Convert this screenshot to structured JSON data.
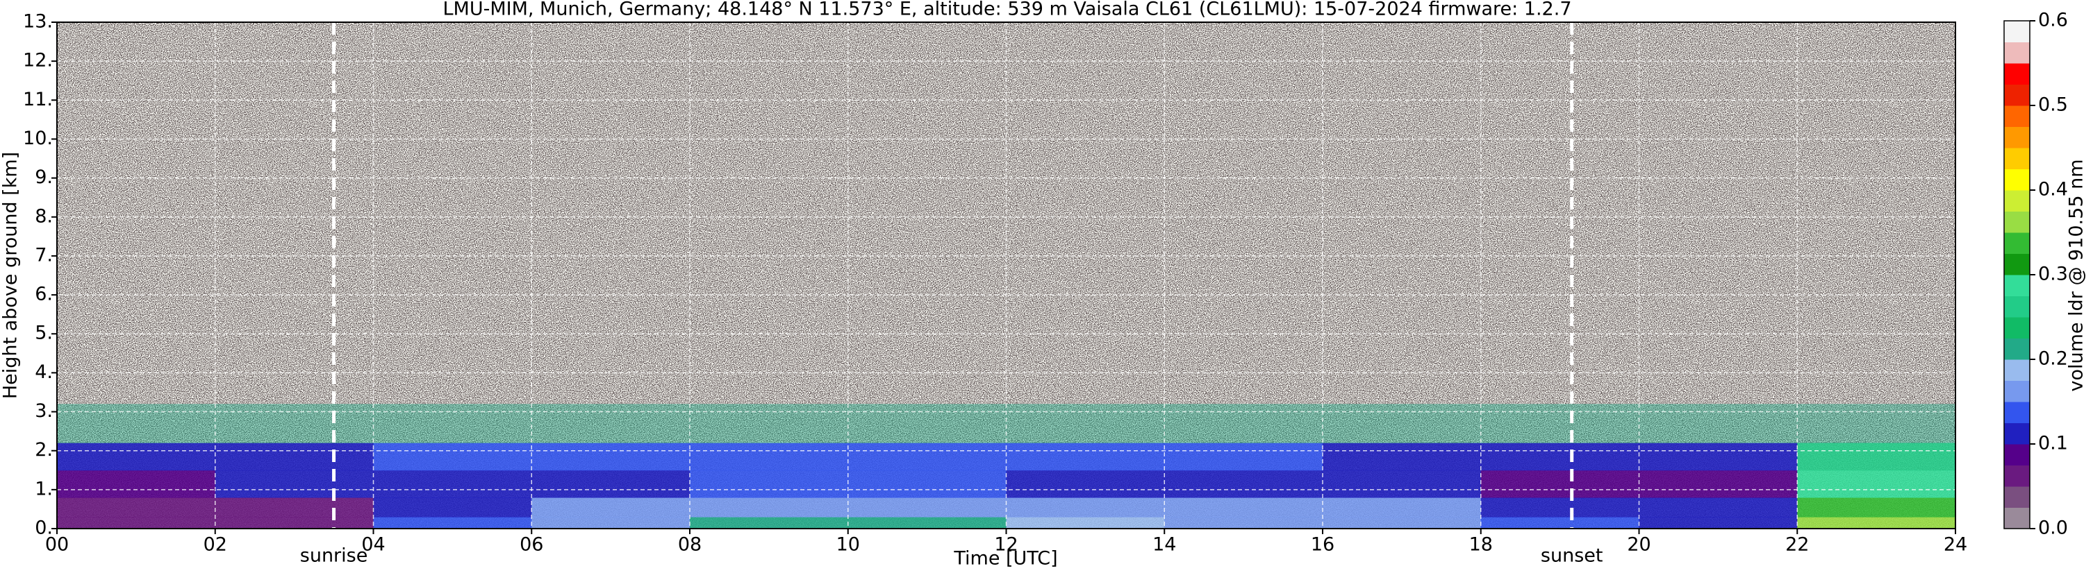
{
  "chart_data": {
    "type": "heatmap",
    "title": "LMU-MIM, Munich, Germany; 48.148° N 11.573° E, altitude: 539 m    Vaisala CL61 (CL61LMU): 15-07-2024    firmware: 1.2.7",
    "xlabel": "Time [UTC]",
    "ylabel": "Height above ground [km]",
    "colorbar_label": "volume ldr @ 910.55 nm",
    "xlim": [
      0,
      24
    ],
    "ylim": [
      0,
      13
    ],
    "xticks": [
      {
        "value": 0,
        "label": "00"
      },
      {
        "value": 2,
        "label": "02"
      },
      {
        "value": 4,
        "label": "04"
      },
      {
        "value": 6,
        "label": "06"
      },
      {
        "value": 8,
        "label": "08"
      },
      {
        "value": 10,
        "label": "10"
      },
      {
        "value": 12,
        "label": "12"
      },
      {
        "value": 14,
        "label": "14"
      },
      {
        "value": 16,
        "label": "16"
      },
      {
        "value": 18,
        "label": "18"
      },
      {
        "value": 20,
        "label": "20"
      },
      {
        "value": 22,
        "label": "22"
      },
      {
        "value": 24,
        "label": "24"
      }
    ],
    "yticks": [
      {
        "value": 0,
        "label": "0."
      },
      {
        "value": 1,
        "label": "1."
      },
      {
        "value": 2,
        "label": "2."
      },
      {
        "value": 3,
        "label": "3."
      },
      {
        "value": 4,
        "label": "4."
      },
      {
        "value": 5,
        "label": "5."
      },
      {
        "value": 6,
        "label": "6."
      },
      {
        "value": 7,
        "label": "7."
      },
      {
        "value": 8,
        "label": "8."
      },
      {
        "value": 9,
        "label": "9."
      },
      {
        "value": 10,
        "label": "10."
      },
      {
        "value": 11,
        "label": "11."
      },
      {
        "value": 12,
        "label": "12."
      },
      {
        "value": 13,
        "label": "13."
      }
    ],
    "grid": true,
    "annotations": [
      {
        "text": "sunrise",
        "x": 3.5
      },
      {
        "text": "sunset",
        "x": 19.15
      }
    ],
    "x_edges": [
      0,
      2,
      4,
      6,
      8,
      10,
      12,
      14,
      16,
      18,
      20,
      22,
      24
    ],
    "y_edges": [
      0,
      0.3,
      0.8,
      1.5,
      2.2,
      3.2
    ],
    "z": [
      [
        0.06,
        0.07,
        0.14,
        0.17,
        0.2,
        0.2,
        0.18,
        0.17,
        0.15,
        0.14,
        0.12,
        0.35
      ],
      [
        0.06,
        0.07,
        0.12,
        0.15,
        0.17,
        0.17,
        0.17,
        0.16,
        0.15,
        0.12,
        0.1,
        0.33
      ],
      [
        0.09,
        0.1,
        0.11,
        0.12,
        0.13,
        0.13,
        0.12,
        0.12,
        0.11,
        0.08,
        0.08,
        0.28
      ],
      [
        0.12,
        0.12,
        0.13,
        0.14,
        0.14,
        0.14,
        0.13,
        0.13,
        0.12,
        0.11,
        0.12,
        0.25
      ],
      [
        0.2,
        0.2,
        0.2,
        0.2,
        0.21,
        0.21,
        0.2,
        0.2,
        0.2,
        0.2,
        0.2,
        0.22
      ]
    ],
    "clim": [
      0,
      0.6
    ],
    "colorbar_ticks": [
      {
        "value": 0,
        "label": "0.0"
      },
      {
        "value": 0.1,
        "label": "0.1"
      },
      {
        "value": 0.2,
        "label": "0.2"
      },
      {
        "value": 0.3,
        "label": "0.3"
      },
      {
        "value": 0.4,
        "label": "0.4"
      },
      {
        "value": 0.5,
        "label": "0.5"
      },
      {
        "value": 0.6,
        "label": "0.6"
      }
    ],
    "colors": [
      "#9a8a9a",
      "#7a4f80",
      "#6a1a80",
      "#55008a",
      "#2020c0",
      "#3355ee",
      "#7799ee",
      "#99bbee",
      "#22aa88",
      "#11bb66",
      "#22cc88",
      "#33dd99",
      "#119911",
      "#33bb33",
      "#99dd44",
      "#ccee33",
      "#ffff00",
      "#ffcc00",
      "#ff9900",
      "#ff6600",
      "#ee2200",
      "#ff0000",
      "#eebbbb",
      "#f4f4f4"
    ]
  }
}
